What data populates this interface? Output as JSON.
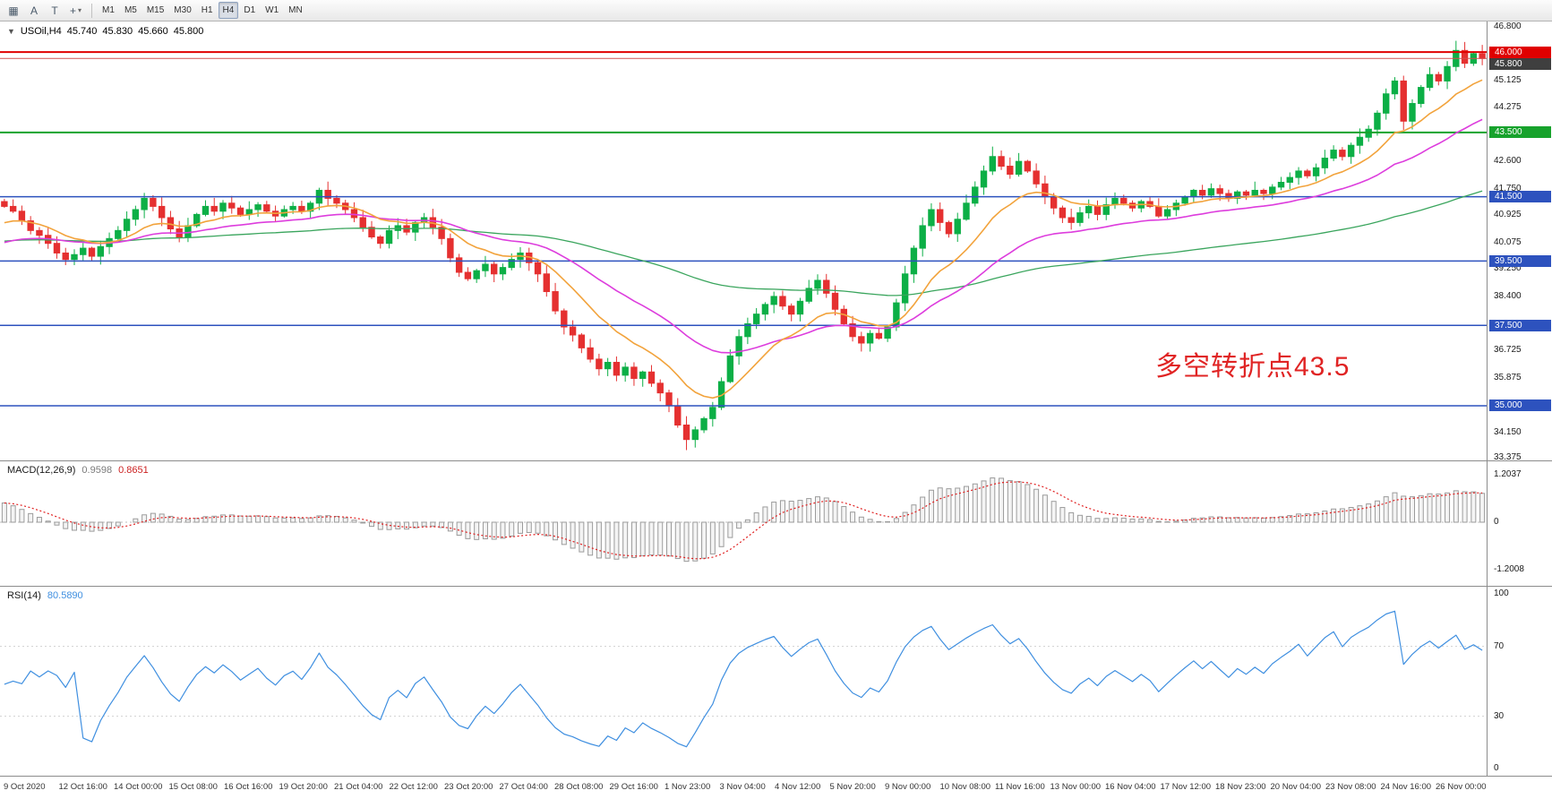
{
  "toolbar": {
    "icons": [
      {
        "name": "tile-windows-icon",
        "glyph": "▦"
      },
      {
        "name": "insert-text-icon",
        "glyph": "A"
      },
      {
        "name": "insert-textbox-icon",
        "glyph": "T"
      },
      {
        "name": "crosshair-tool-icon",
        "glyph": "+",
        "has_dropdown": true
      }
    ],
    "timeframes": [
      "M1",
      "M5",
      "M15",
      "M30",
      "H1",
      "H4",
      "D1",
      "W1",
      "MN"
    ],
    "selected_timeframe": "H4"
  },
  "symbol_line": {
    "collapse_icon": "▼",
    "symbol": "USOil,H4",
    "open": "45.740",
    "high": "45.830",
    "low": "45.660",
    "close": "45.800"
  },
  "annotation": {
    "text": "多空转折点43.5",
    "color": "#e02424"
  },
  "chart_data": {
    "type": "candlestick",
    "symbol": "USOil",
    "timeframe": "H4",
    "ohlc_display": {
      "open": "45.740",
      "high": "45.830",
      "low": "45.660",
      "close": "45.800"
    },
    "y_axis": {
      "range": [
        33.3,
        46.95
      ],
      "ticks": [
        "46.800",
        "45.125",
        "44.275",
        "42.600",
        "41.750",
        "40.925",
        "40.075",
        "39.250",
        "38.400",
        "36.725",
        "35.875",
        "34.150",
        "33.375"
      ]
    },
    "x_labels": [
      "9 Oct 2020",
      "12 Oct 16:00",
      "14 Oct 00:00",
      "15 Oct 08:00",
      "16 Oct 16:00",
      "19 Oct 20:00",
      "21 Oct 04:00",
      "22 Oct 12:00",
      "23 Oct 20:00",
      "27 Oct 04:00",
      "28 Oct 08:00",
      "29 Oct 16:00",
      "1 Nov 23:00",
      "3 Nov 04:00",
      "4 Nov 12:00",
      "5 Nov 20:00",
      "9 Nov 00:00",
      "10 Nov 08:00",
      "11 Nov 16:00",
      "13 Nov 00:00",
      "16 Nov 04:00",
      "17 Nov 12:00",
      "18 Nov 23:00",
      "20 Nov 04:00",
      "23 Nov 08:00",
      "24 Nov 16:00",
      "26 Nov 00:00"
    ],
    "open_first": 41.35,
    "closes": [
      41.2,
      41.05,
      40.75,
      40.45,
      40.3,
      40.05,
      39.75,
      39.55,
      39.7,
      39.9,
      39.65,
      39.95,
      40.2,
      40.45,
      40.8,
      41.1,
      41.45,
      41.2,
      40.85,
      40.5,
      40.25,
      40.6,
      40.95,
      41.2,
      41.05,
      41.3,
      41.15,
      40.95,
      41.1,
      41.25,
      41.05,
      40.9,
      41.1,
      41.2,
      41.05,
      41.3,
      41.7,
      41.45,
      41.3,
      41.1,
      40.85,
      40.55,
      40.25,
      40.05,
      40.45,
      40.6,
      40.4,
      40.7,
      40.85,
      40.55,
      40.2,
      39.6,
      39.15,
      38.95,
      39.2,
      39.4,
      39.1,
      39.3,
      39.55,
      39.75,
      39.45,
      39.1,
      38.55,
      37.95,
      37.45,
      37.2,
      36.8,
      36.45,
      36.15,
      36.35,
      35.95,
      36.2,
      35.85,
      36.05,
      35.7,
      35.4,
      35.0,
      34.4,
      33.95,
      34.25,
      34.6,
      34.95,
      35.75,
      36.55,
      37.15,
      37.55,
      37.85,
      38.15,
      38.4,
      38.1,
      37.85,
      38.25,
      38.65,
      38.9,
      38.5,
      38.0,
      37.55,
      37.15,
      36.95,
      37.25,
      37.1,
      37.45,
      38.2,
      39.1,
      39.9,
      40.6,
      41.1,
      40.7,
      40.35,
      40.8,
      41.3,
      41.8,
      42.3,
      42.75,
      42.45,
      42.2,
      42.6,
      42.3,
      41.9,
      41.5,
      41.15,
      40.85,
      40.7,
      41.0,
      41.2,
      40.95,
      41.25,
      41.45,
      41.3,
      41.15,
      41.35,
      41.2,
      40.9,
      41.1,
      41.3,
      41.5,
      41.7,
      41.55,
      41.75,
      41.6,
      41.45,
      41.65,
      41.55,
      41.7,
      41.6,
      41.8,
      41.95,
      42.1,
      42.3,
      42.15,
      42.4,
      42.7,
      42.95,
      42.75,
      43.1,
      43.35,
      43.6,
      44.1,
      44.7,
      45.1,
      43.85,
      44.4,
      44.9,
      45.3,
      45.1,
      45.55,
      46.05,
      45.65,
      45.95,
      45.8
    ],
    "extremes": {
      "16": {
        "high": 41.62
      },
      "36": {
        "high": 41.78
      },
      "78": {
        "low": 33.62
      },
      "113": {
        "high": 43.06
      },
      "159": {
        "high": 45.22
      },
      "160": {
        "low": 43.58
      },
      "166": {
        "high": 46.35
      }
    },
    "levels": [
      {
        "price": 46.0,
        "badge": "46.000",
        "line_color": "#e00000",
        "badge_bg": "#e00000",
        "width": 2,
        "role": "resistance"
      },
      {
        "price": 45.8,
        "badge": "45.800",
        "line_color": "#d05050",
        "badge_bg": "#3f3f3f",
        "width": 1,
        "role": "current-price"
      },
      {
        "price": 43.5,
        "badge": "43.500",
        "line_color": "#17a22c",
        "badge_bg": "#17a22c",
        "width": 2,
        "role": "pivot"
      },
      {
        "price": 41.5,
        "badge": "41.500",
        "line_color": "#2d52be",
        "badge_bg": "#2d52be",
        "width": 1.5,
        "role": "support"
      },
      {
        "price": 39.5,
        "badge": "39.500",
        "line_color": "#2d52be",
        "badge_bg": "#2d52be",
        "width": 1.5,
        "role": "support"
      },
      {
        "price": 37.5,
        "badge": "37.500",
        "line_color": "#2d52be",
        "badge_bg": "#2d52be",
        "width": 1.5,
        "role": "support"
      },
      {
        "price": 35.0,
        "badge": "35.000",
        "line_color": "#2d52be",
        "badge_bg": "#2d52be",
        "width": 1.5,
        "role": "support"
      }
    ],
    "moving_averages": [
      {
        "name": "fast-ma",
        "color": "#f2a33c"
      },
      {
        "name": "medium-ma",
        "color": "#dd3ddd"
      },
      {
        "name": "slow-ma",
        "color": "#3aa55d"
      }
    ],
    "indicators": {
      "macd": {
        "label": "MACD(12,26,9)",
        "main_value": "0.9598",
        "signal_value": "0.8651",
        "axis": [
          {
            "label": "1.2037",
            "v": 1.2037
          },
          {
            "label": "0",
            "v": 0
          },
          {
            "label": "-1.2008",
            "v": -1.2008
          }
        ]
      },
      "rsi": {
        "label": "RSI(14)",
        "value": "80.5890",
        "axis": [
          {
            "label": "100",
            "v": 100
          },
          {
            "label": "70",
            "v": 70
          },
          {
            "label": "30",
            "v": 30
          },
          {
            "label": "0",
            "v": 0
          }
        ],
        "guide_levels": [
          70,
          30
        ]
      }
    },
    "colors": {
      "up": "#0caf46",
      "down": "#e53030",
      "rsi_line": "#3f8fe0",
      "macd_signal": "#e02020",
      "macd_hist_fill": "#f4f4f4",
      "macd_hist_stroke": "#9b9b9b"
    }
  }
}
